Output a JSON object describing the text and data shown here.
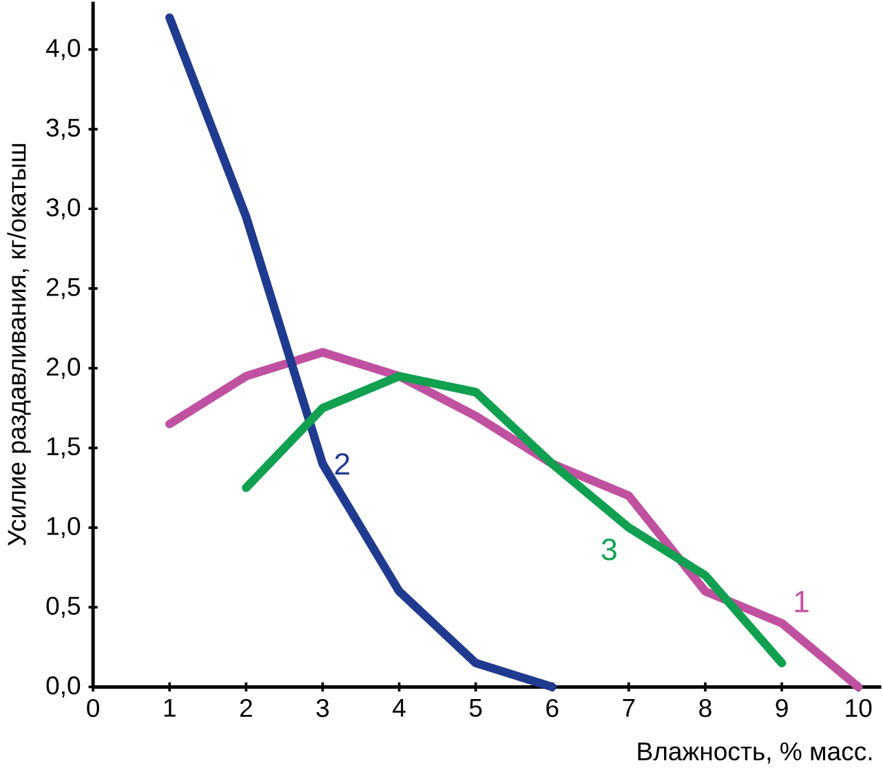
{
  "chart_data": {
    "type": "line",
    "xlabel": "Влажность, % масс.",
    "ylabel": "Усилие раздавливания, кг/окатыш",
    "xlim": [
      0,
      10.3
    ],
    "ylim": [
      0,
      4.3
    ],
    "xticks": [
      0,
      1,
      2,
      3,
      4,
      5,
      6,
      7,
      8,
      9,
      10
    ],
    "yticks": [
      {
        "value": 0,
        "label": "0,0"
      },
      {
        "value": 0.5,
        "label": "0,5"
      },
      {
        "value": 1,
        "label": "1,0"
      },
      {
        "value": 1.5,
        "label": "1,5"
      },
      {
        "value": 2,
        "label": "2,0"
      },
      {
        "value": 2.5,
        "label": "2,5"
      },
      {
        "value": 3,
        "label": "3,0"
      },
      {
        "value": 3.5,
        "label": "3,5"
      },
      {
        "value": 4,
        "label": "4,0"
      }
    ],
    "grid": false,
    "legend": false,
    "marker": "none",
    "line_style": "solid",
    "series": [
      {
        "name": "1",
        "color": "#c050a0",
        "x": [
          1,
          2,
          3,
          4,
          5,
          6,
          7,
          8,
          9,
          10
        ],
        "values": [
          1.65,
          1.95,
          2.1,
          1.95,
          1.7,
          1.4,
          1.2,
          0.6,
          0.4,
          0.0
        ]
      },
      {
        "name": "2",
        "color": "#1f3a8f",
        "x": [
          1,
          2,
          3,
          4,
          5,
          6
        ],
        "values": [
          4.2,
          2.95,
          1.4,
          0.6,
          0.15,
          0.0
        ]
      },
      {
        "name": "3",
        "color": "#10a050",
        "x": [
          2,
          3,
          4,
          5,
          6,
          7,
          8,
          9
        ],
        "values": [
          1.25,
          1.75,
          1.95,
          1.85,
          1.4,
          1.0,
          0.7,
          0.15
        ]
      }
    ]
  }
}
